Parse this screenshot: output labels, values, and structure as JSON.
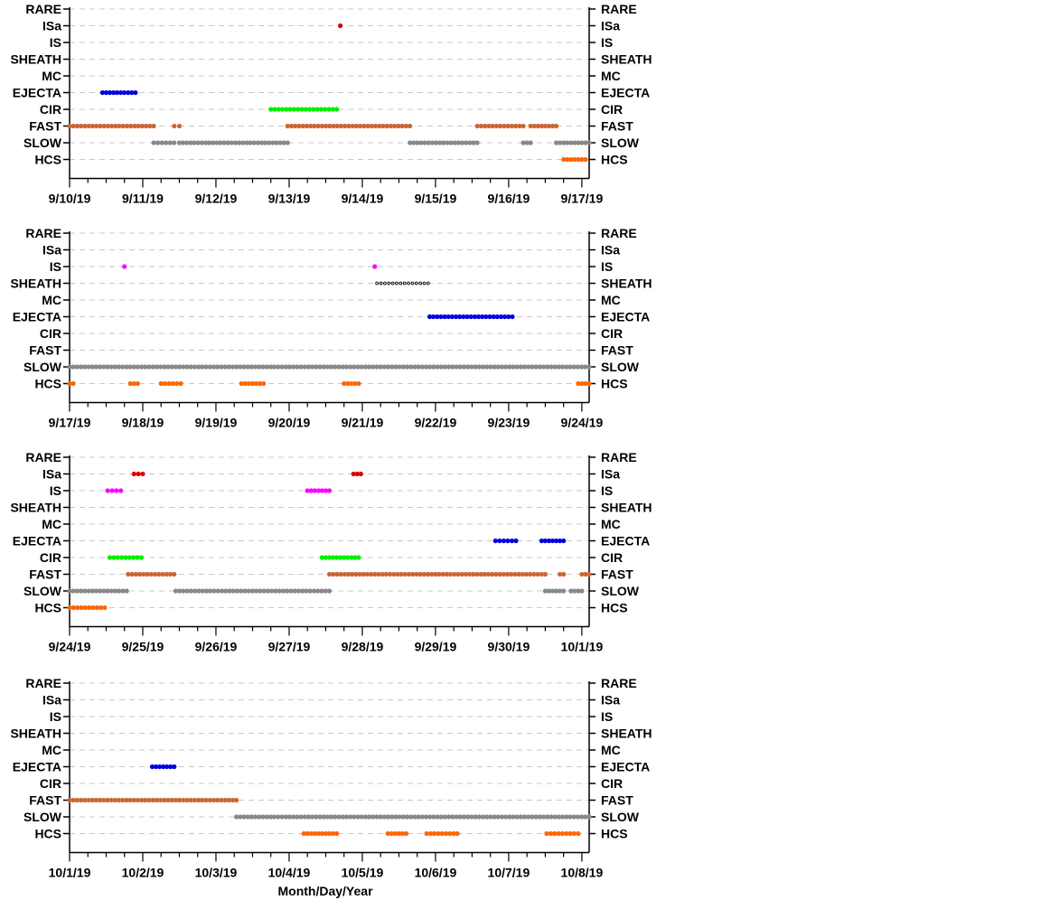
{
  "chart_data": {
    "type": "scatter",
    "categories": [
      "RARE",
      "ISa",
      "IS",
      "SHEATH",
      "MC",
      "EJECTA",
      "CIR",
      "FAST",
      "SLOW",
      "HCS"
    ],
    "xlabel": "Month/Day/Year",
    "grid": "dashed-horizontal",
    "colors": {
      "RARE": "#000000",
      "ISa": "#dd0000",
      "IS": "#ff00ff",
      "SHEATH": "#000000",
      "MC": "#000000",
      "EJECTA": "#0000dd",
      "CIR": "#00ee00",
      "FAST": "#cc6633",
      "SLOW": "#888888",
      "HCS": "#ff6600"
    },
    "hollow_categories": [
      "SHEATH"
    ],
    "panels": [
      {
        "xlim": [
          0,
          7.1
        ],
        "tick_labels": [
          "9/10/19",
          "9/11/19",
          "9/12/19",
          "9/13/19",
          "9/14/19",
          "9/15/19",
          "9/16/19",
          "9/17/19"
        ],
        "intervals": [
          {
            "cat": "ISa",
            "start": 3.7,
            "end": 3.7
          },
          {
            "cat": "EJECTA",
            "start": 0.45,
            "end": 0.9
          },
          {
            "cat": "CIR",
            "start": 2.75,
            "end": 3.65
          },
          {
            "cat": "FAST",
            "start": 0.0,
            "end": 1.15
          },
          {
            "cat": "FAST",
            "start": 1.43,
            "end": 1.5
          },
          {
            "cat": "FAST",
            "start": 2.98,
            "end": 4.65
          },
          {
            "cat": "FAST",
            "start": 5.57,
            "end": 6.2
          },
          {
            "cat": "FAST",
            "start": 6.3,
            "end": 6.65
          },
          {
            "cat": "SLOW",
            "start": 1.15,
            "end": 1.43
          },
          {
            "cat": "SLOW",
            "start": 1.5,
            "end": 2.98
          },
          {
            "cat": "SLOW",
            "start": 4.65,
            "end": 5.57
          },
          {
            "cat": "SLOW",
            "start": 6.2,
            "end": 6.3
          },
          {
            "cat": "SLOW",
            "start": 6.65,
            "end": 7.1
          },
          {
            "cat": "HCS",
            "start": 6.75,
            "end": 7.05
          }
        ]
      },
      {
        "xlim": [
          0,
          7.1
        ],
        "tick_labels": [
          "9/17/19",
          "9/18/19",
          "9/19/19",
          "9/20/19",
          "9/21/19",
          "9/22/19",
          "9/23/19",
          "9/24/19"
        ],
        "intervals": [
          {
            "cat": "IS",
            "start": 0.75,
            "end": 0.75
          },
          {
            "cat": "IS",
            "start": 4.17,
            "end": 4.17
          },
          {
            "cat": "SHEATH",
            "start": 4.2,
            "end": 4.9
          },
          {
            "cat": "EJECTA",
            "start": 4.92,
            "end": 6.05
          },
          {
            "cat": "SLOW",
            "start": 0.0,
            "end": 7.1
          },
          {
            "cat": "HCS",
            "start": 0.0,
            "end": 0.05
          },
          {
            "cat": "HCS",
            "start": 0.83,
            "end": 0.93
          },
          {
            "cat": "HCS",
            "start": 1.25,
            "end": 1.52
          },
          {
            "cat": "HCS",
            "start": 2.35,
            "end": 2.65
          },
          {
            "cat": "HCS",
            "start": 3.75,
            "end": 3.95
          },
          {
            "cat": "HCS",
            "start": 6.95,
            "end": 7.1
          }
        ]
      },
      {
        "xlim": [
          0,
          7.1
        ],
        "tick_labels": [
          "9/24/19",
          "9/25/19",
          "9/26/19",
          "9/27/19",
          "9/28/19",
          "9/29/19",
          "9/30/19",
          "10/1/19"
        ],
        "intervals": [
          {
            "cat": "ISa",
            "start": 0.88,
            "end": 1.0
          },
          {
            "cat": "ISa",
            "start": 3.88,
            "end": 3.98
          },
          {
            "cat": "IS",
            "start": 0.52,
            "end": 0.7
          },
          {
            "cat": "IS",
            "start": 3.25,
            "end": 3.55
          },
          {
            "cat": "EJECTA",
            "start": 5.82,
            "end": 6.1
          },
          {
            "cat": "EJECTA",
            "start": 6.45,
            "end": 6.75
          },
          {
            "cat": "CIR",
            "start": 0.55,
            "end": 0.98
          },
          {
            "cat": "CIR",
            "start": 3.45,
            "end": 3.95
          },
          {
            "cat": "FAST",
            "start": 0.8,
            "end": 1.43
          },
          {
            "cat": "FAST",
            "start": 3.55,
            "end": 6.5
          },
          {
            "cat": "FAST",
            "start": 6.7,
            "end": 6.75
          },
          {
            "cat": "FAST",
            "start": 7.0,
            "end": 7.1
          },
          {
            "cat": "SLOW",
            "start": 0.0,
            "end": 0.78
          },
          {
            "cat": "SLOW",
            "start": 1.45,
            "end": 3.55
          },
          {
            "cat": "SLOW",
            "start": 6.5,
            "end": 6.75
          },
          {
            "cat": "SLOW",
            "start": 6.85,
            "end": 7.0
          },
          {
            "cat": "HCS",
            "start": 0.0,
            "end": 0.48
          }
        ]
      },
      {
        "xlim": [
          0,
          7.1
        ],
        "tick_labels": [
          "10/1/19",
          "10/2/19",
          "10/3/19",
          "10/4/19",
          "10/5/19",
          "10/6/19",
          "10/7/19",
          "10/8/19"
        ],
        "intervals": [
          {
            "cat": "EJECTA",
            "start": 1.13,
            "end": 1.43
          },
          {
            "cat": "FAST",
            "start": 0.0,
            "end": 2.28
          },
          {
            "cat": "SLOW",
            "start": 2.28,
            "end": 7.1
          },
          {
            "cat": "HCS",
            "start": 3.2,
            "end": 3.65
          },
          {
            "cat": "HCS",
            "start": 4.35,
            "end": 4.6
          },
          {
            "cat": "HCS",
            "start": 4.88,
            "end": 5.3
          },
          {
            "cat": "HCS",
            "start": 6.52,
            "end": 6.95
          }
        ]
      }
    ]
  }
}
